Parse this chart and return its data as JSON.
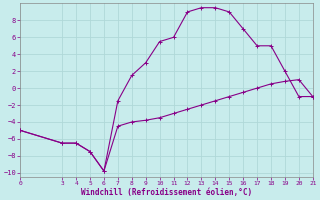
{
  "xlabel": "Windchill (Refroidissement éolien,°C)",
  "background_color": "#c8ecec",
  "grid_color": "#b0d8d8",
  "line_color": "#880088",
  "spine_color": "#888888",
  "xlim": [
    0,
    21
  ],
  "ylim": [
    -10.5,
    10
  ],
  "xticks": [
    0,
    3,
    4,
    5,
    6,
    7,
    8,
    9,
    10,
    11,
    12,
    13,
    14,
    15,
    16,
    17,
    18,
    19,
    20,
    21
  ],
  "yticks": [
    -10,
    -8,
    -6,
    -4,
    -2,
    0,
    2,
    4,
    6,
    8
  ],
  "series1_x": [
    0,
    3,
    4,
    5,
    6,
    7,
    8,
    9,
    10,
    11,
    12,
    13,
    14,
    15,
    16,
    17,
    18,
    19,
    20,
    21
  ],
  "series1_y": [
    -5,
    -6.5,
    -6.5,
    -7.5,
    -9.8,
    -4.5,
    -4,
    -3.8,
    -3.5,
    -3,
    -2.5,
    -2,
    -1.5,
    -1,
    -0.5,
    0,
    0.5,
    0.8,
    1.0,
    -1.0
  ],
  "series2_x": [
    0,
    3,
    4,
    5,
    6,
    7,
    8,
    9,
    10,
    11,
    12,
    13,
    14,
    15,
    16,
    17,
    18,
    19,
    20,
    21
  ],
  "series2_y": [
    -5,
    -6.5,
    -6.5,
    -7.5,
    -9.8,
    -1.5,
    1.5,
    3.0,
    5.5,
    6.0,
    9.0,
    9.5,
    9.5,
    9.0,
    7.0,
    5.0,
    5.0,
    2.0,
    -1.0,
    -1.0
  ]
}
